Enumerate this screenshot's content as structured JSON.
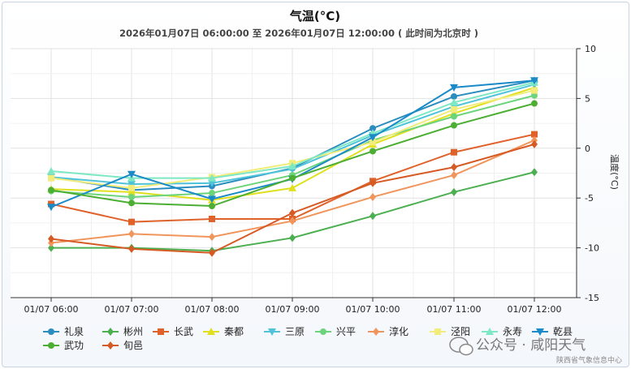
{
  "chart_data": {
    "type": "line",
    "title": "气温(°C)",
    "subtitle": "2026年01月07日 06:00:00 至 2026年01月07日 12:00:00 ( 此时间为北京时 )",
    "ylabel": "温度(°C)",
    "xlabel": "",
    "categories": [
      "01/07 06:00",
      "01/07 07:00",
      "01/07 08:00",
      "01/07 09:00",
      "01/07 10:00",
      "01/07 11:00",
      "01/07 12:00"
    ],
    "ylim": [
      -15,
      10
    ],
    "yticks": [
      -15,
      -10,
      -5,
      0,
      5,
      10
    ],
    "y_axis_position": "right",
    "legend_position": "bottom",
    "series": [
      {
        "name": "礼泉",
        "color": "#2a8cbf",
        "marker": "circle",
        "values": [
          -2.9,
          -4.2,
          -3.8,
          -2.0,
          2.0,
          5.2,
          6.8
        ]
      },
      {
        "name": "彬州",
        "color": "#4caf50",
        "marker": "diamond",
        "values": [
          -10.0,
          -10.0,
          -10.3,
          -9.0,
          -6.8,
          -4.4,
          -2.4
        ]
      },
      {
        "name": "长武",
        "color": "#e0622b",
        "marker": "square",
        "values": [
          -5.6,
          -7.4,
          -7.1,
          -7.1,
          -3.3,
          -0.4,
          1.4
        ]
      },
      {
        "name": "秦都",
        "color": "#e0e020",
        "marker": "triangle",
        "values": [
          -4.1,
          -4.4,
          -5.2,
          -4.0,
          0.4,
          3.5,
          6.1
        ]
      },
      {
        "name": "三原",
        "color": "#4fc4d9",
        "marker": "triangle-down",
        "values": [
          -2.9,
          -3.6,
          -3.5,
          -2.1,
          1.3,
          4.2,
          6.4
        ]
      },
      {
        "name": "兴平",
        "color": "#6cd47a",
        "marker": "circle",
        "values": [
          -4.3,
          -4.9,
          -4.5,
          -2.7,
          0.8,
          3.2,
          5.3
        ]
      },
      {
        "name": "淳化",
        "color": "#f0955c",
        "marker": "diamond",
        "values": [
          -9.5,
          -8.6,
          -8.9,
          -7.3,
          -4.9,
          -2.7,
          0.8
        ]
      },
      {
        "name": "泾阳",
        "color": "#f2ec7a",
        "marker": "square",
        "values": [
          -3.0,
          -4.0,
          -2.9,
          -1.5,
          0.6,
          3.9,
          5.8
        ]
      },
      {
        "name": "永寿",
        "color": "#7ee8c4",
        "marker": "triangle",
        "values": [
          -2.3,
          -3.0,
          -3.0,
          -1.8,
          1.5,
          4.6,
          6.6
        ]
      },
      {
        "name": "乾县",
        "color": "#1b8ac8",
        "marker": "triangle-down",
        "values": [
          -5.9,
          -2.6,
          -5.1,
          -3.1,
          1.1,
          6.1,
          6.8
        ]
      },
      {
        "name": "武功",
        "color": "#4cae33",
        "marker": "circle",
        "values": [
          -4.2,
          -5.5,
          -5.8,
          -3.0,
          -0.3,
          2.3,
          4.5
        ]
      },
      {
        "name": "旬邑",
        "color": "#d65a24",
        "marker": "diamond",
        "values": [
          -9.1,
          -10.1,
          -10.5,
          -6.5,
          -3.5,
          -1.9,
          0.4
        ]
      }
    ]
  },
  "watermark": {
    "text": "公众号 · 咸阳天气",
    "source": "陕西省气象信息中心"
  }
}
